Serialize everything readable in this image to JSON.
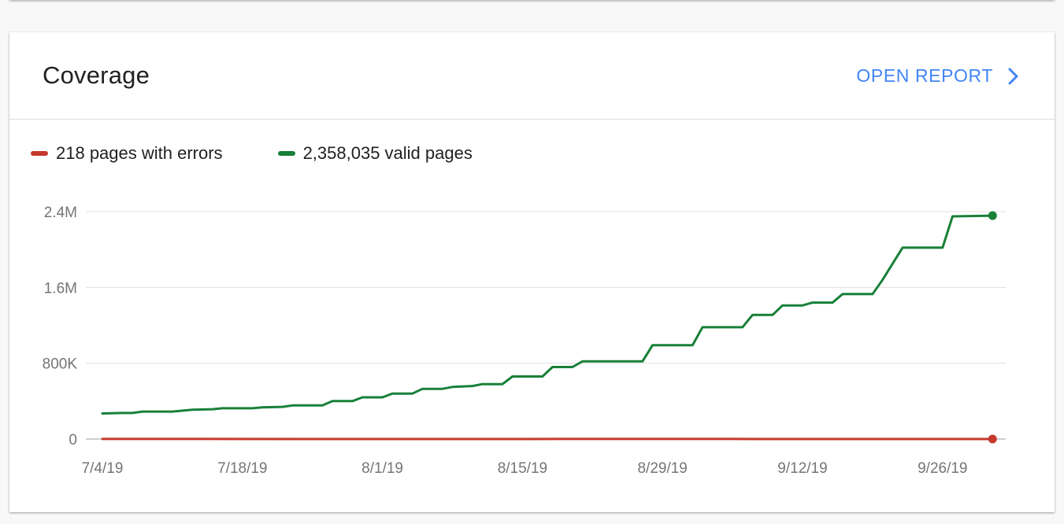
{
  "card": {
    "title": "Coverage",
    "open_report_label": "OPEN REPORT",
    "open_report_icon": "chevron-right-icon"
  },
  "legend": [
    {
      "label": "218 pages with errors",
      "color": "#c5392c"
    },
    {
      "label": "2,358,035 valid pages",
      "color": "#188038"
    }
  ],
  "chart_data": {
    "type": "line",
    "y_ticks": [
      "2.4M",
      "1.6M",
      "800K",
      "0"
    ],
    "y_tick_values": [
      2400000,
      1600000,
      800000,
      0
    ],
    "x_ticks": [
      "7/4/19",
      "7/18/19",
      "8/1/19",
      "8/15/19",
      "8/29/19",
      "9/12/19",
      "9/26/19"
    ],
    "x_tick_dates": [
      "2019-07-04",
      "2019-07-18",
      "2019-08-01",
      "2019-08-15",
      "2019-08-29",
      "2019-09-12",
      "2019-09-26"
    ],
    "ylim": [
      0,
      2400000
    ],
    "grid": true,
    "legend_position": "top-left",
    "series": [
      {
        "name": "218 pages with errors",
        "color": "#c5392c",
        "points": [
          [
            "2019-07-04",
            1000
          ],
          [
            "2019-07-08",
            800
          ],
          [
            "2019-07-14",
            600
          ],
          [
            "2019-07-26",
            300
          ],
          [
            "2019-08-15",
            300
          ],
          [
            "2019-08-19",
            500
          ],
          [
            "2019-09-05",
            500
          ],
          [
            "2019-09-08",
            300
          ],
          [
            "2019-10-01",
            218
          ]
        ]
      },
      {
        "name": "2,358,035 valid pages",
        "color": "#188038",
        "points": [
          [
            "2019-07-04",
            270000
          ],
          [
            "2019-07-06",
            275000
          ],
          [
            "2019-07-07",
            275000
          ],
          [
            "2019-07-08",
            290000
          ],
          [
            "2019-07-11",
            290000
          ],
          [
            "2019-07-13",
            310000
          ],
          [
            "2019-07-15",
            315000
          ],
          [
            "2019-07-16",
            325000
          ],
          [
            "2019-07-19",
            325000
          ],
          [
            "2019-07-20",
            335000
          ],
          [
            "2019-07-22",
            340000
          ],
          [
            "2019-07-23",
            355000
          ],
          [
            "2019-07-26",
            355000
          ],
          [
            "2019-07-27",
            400000
          ],
          [
            "2019-07-29",
            400000
          ],
          [
            "2019-07-30",
            440000
          ],
          [
            "2019-08-01",
            440000
          ],
          [
            "2019-08-02",
            480000
          ],
          [
            "2019-08-04",
            480000
          ],
          [
            "2019-08-05",
            530000
          ],
          [
            "2019-08-07",
            530000
          ],
          [
            "2019-08-08",
            550000
          ],
          [
            "2019-08-10",
            560000
          ],
          [
            "2019-08-11",
            580000
          ],
          [
            "2019-08-13",
            580000
          ],
          [
            "2019-08-14",
            660000
          ],
          [
            "2019-08-17",
            660000
          ],
          [
            "2019-08-18",
            760000
          ],
          [
            "2019-08-20",
            760000
          ],
          [
            "2019-08-21",
            820000
          ],
          [
            "2019-08-27",
            820000
          ],
          [
            "2019-08-28",
            990000
          ],
          [
            "2019-09-01",
            990000
          ],
          [
            "2019-09-02",
            1180000
          ],
          [
            "2019-09-06",
            1180000
          ],
          [
            "2019-09-07",
            1310000
          ],
          [
            "2019-09-09",
            1310000
          ],
          [
            "2019-09-10",
            1410000
          ],
          [
            "2019-09-12",
            1410000
          ],
          [
            "2019-09-13",
            1440000
          ],
          [
            "2019-09-15",
            1440000
          ],
          [
            "2019-09-16",
            1530000
          ],
          [
            "2019-09-19",
            1530000
          ],
          [
            "2019-09-20",
            1680000
          ],
          [
            "2019-09-22",
            2020000
          ],
          [
            "2019-09-25",
            2020000
          ],
          [
            "2019-09-26",
            2020000
          ],
          [
            "2019-09-27",
            2350000
          ],
          [
            "2019-10-01",
            2358035
          ]
        ]
      }
    ]
  }
}
